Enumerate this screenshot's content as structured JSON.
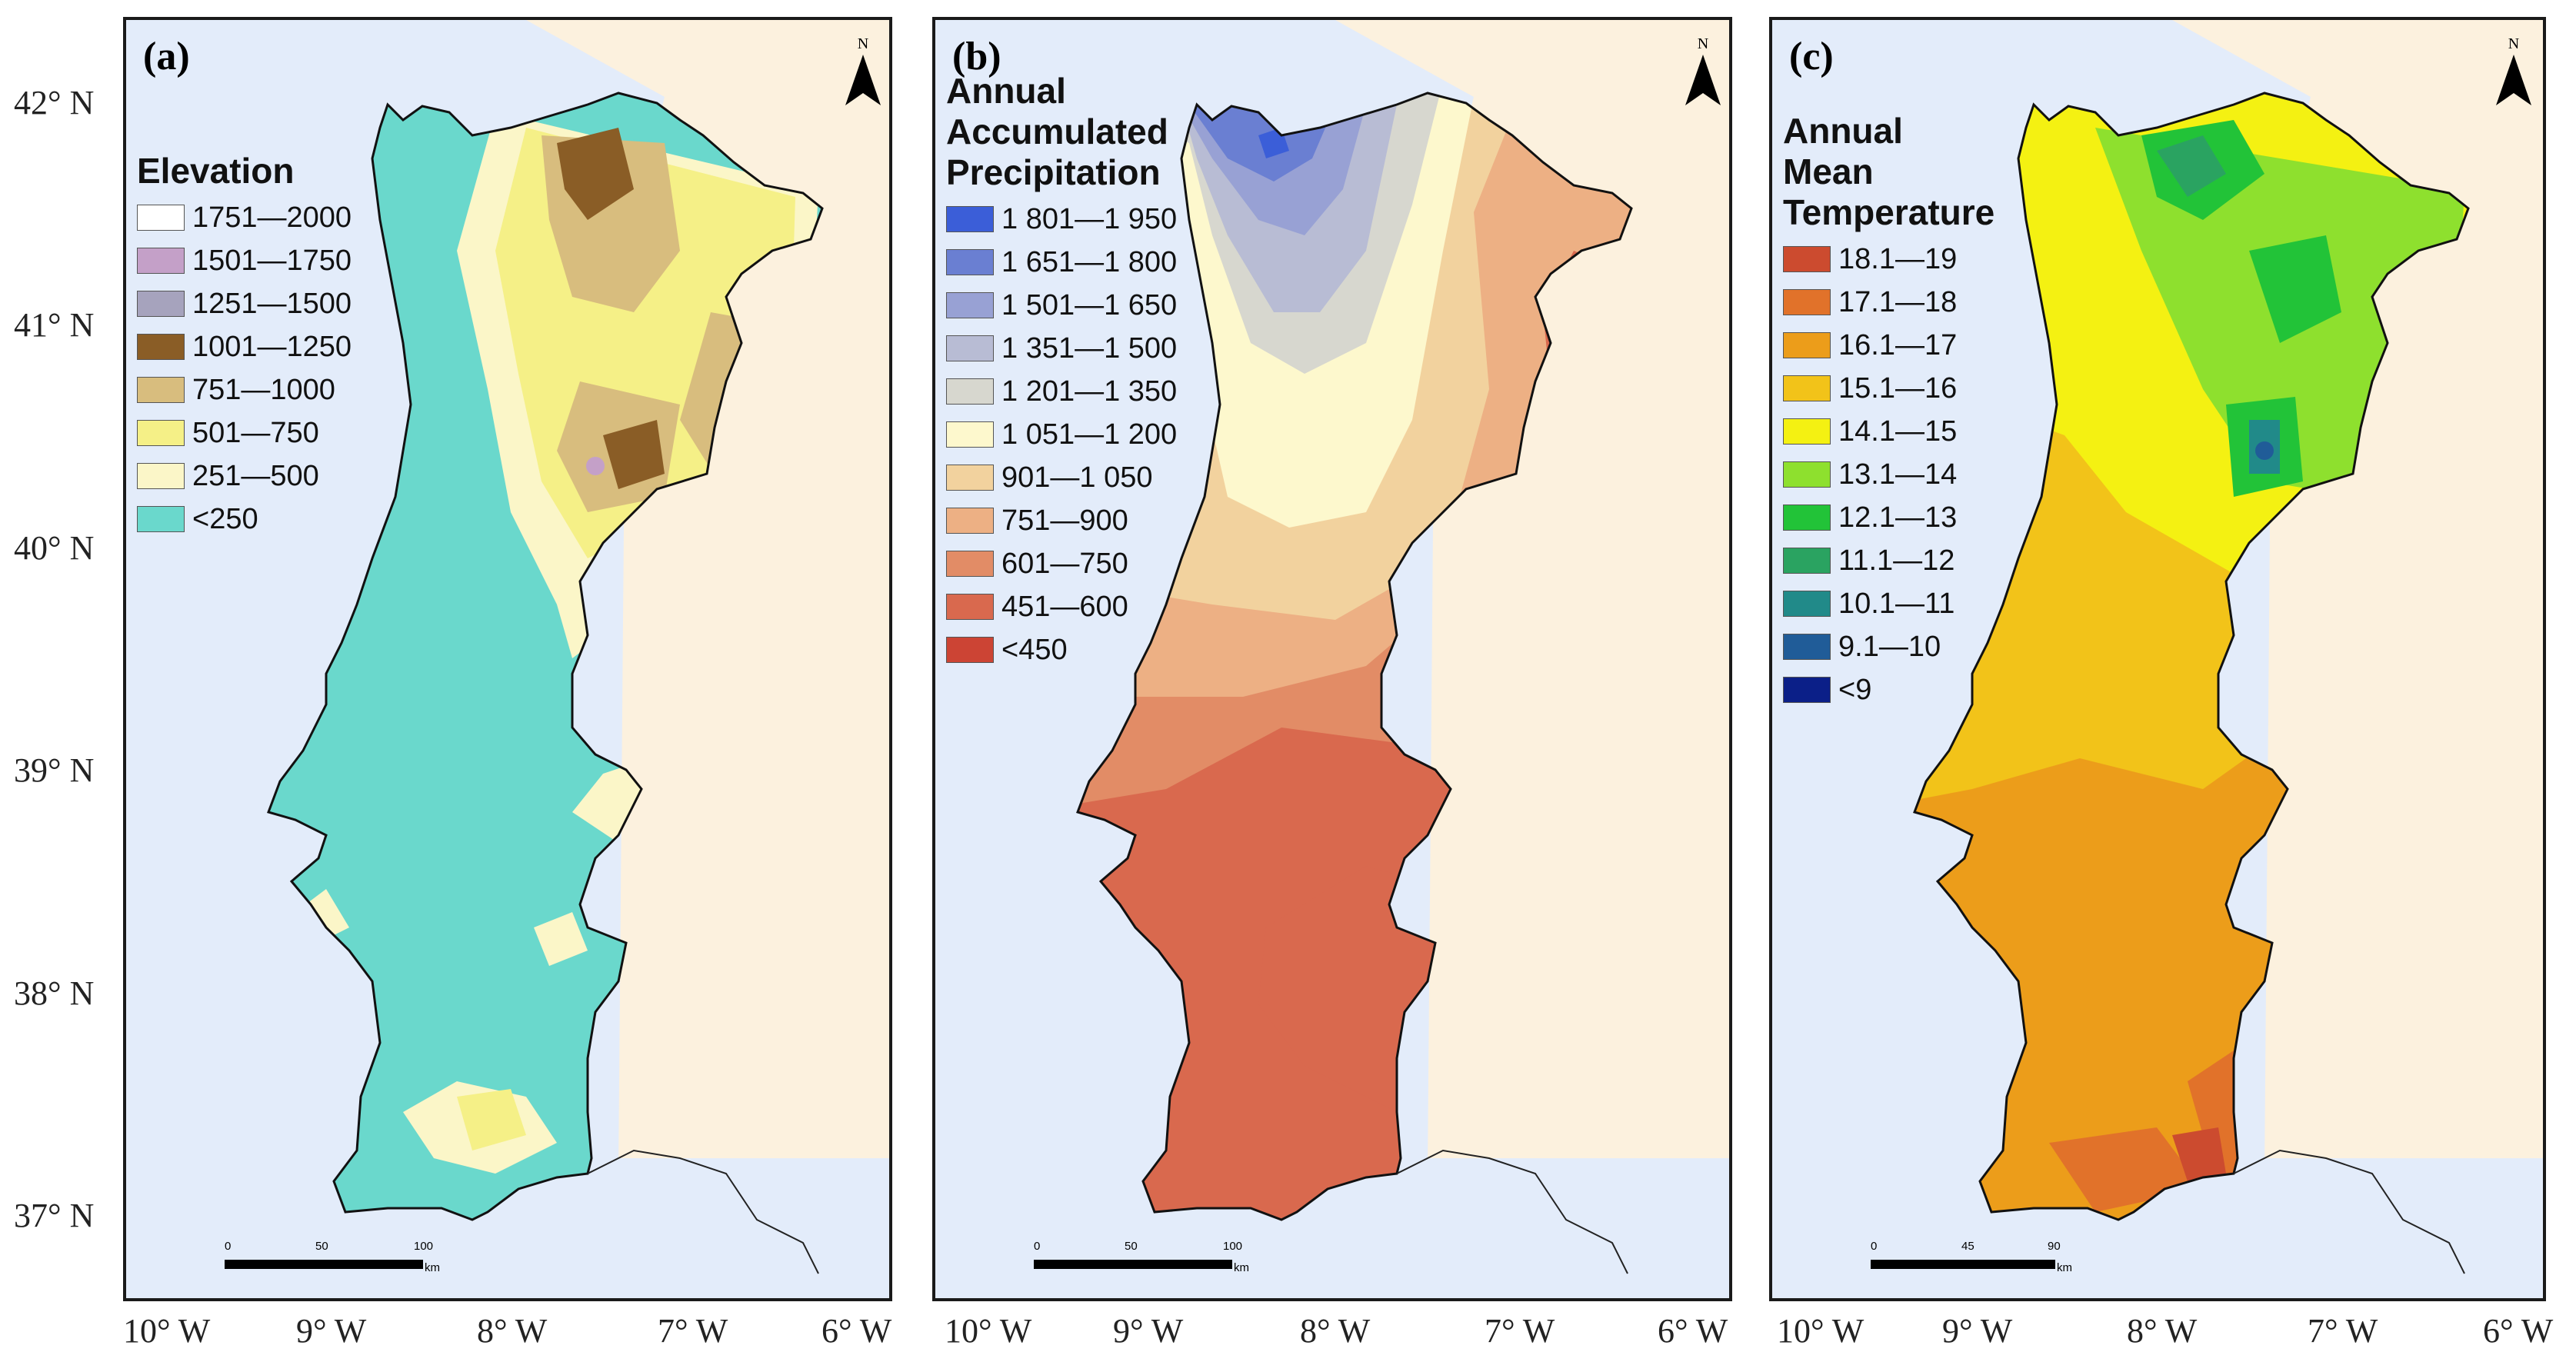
{
  "axes": {
    "latitudes": [
      "42° N",
      "41° N",
      "40° N",
      "39° N",
      "38° N",
      "37° N"
    ],
    "longitudes": [
      "10° W",
      "9° W",
      "8° W",
      "7° W",
      "6° W"
    ]
  },
  "colors": {
    "ocean": "#e3ecfa",
    "spain": "#fcf1de",
    "frame": "#1a1a1a"
  },
  "panels": [
    {
      "label": "(a)",
      "north_letter": "N",
      "legend": {
        "title": "Elevation",
        "items": [
          {
            "label": "1751—2000",
            "color": "#ffffff"
          },
          {
            "label": "1501—1750",
            "color": "#c4a0c8"
          },
          {
            "label": "1251—1500",
            "color": "#a6a3bd"
          },
          {
            "label": "1001—1250",
            "color": "#8a5d26"
          },
          {
            "label": "751—1000",
            "color": "#d8bd7e"
          },
          {
            "label": "501—750",
            "color": "#f5f087"
          },
          {
            "label": "251—500",
            "color": "#fbf6c8"
          },
          {
            "label": "<250",
            "color": "#6ad8cc"
          }
        ]
      },
      "scalebar": {
        "ticks": [
          "0",
          "50",
          "100"
        ],
        "unit": "km"
      }
    },
    {
      "label": "(b)",
      "north_letter": "N",
      "legend": {
        "title": "Annual Accumulated Precipitation",
        "title_lines": [
          "Annual",
          "Accumulated",
          "Precipitation"
        ],
        "items": [
          {
            "label": "1 801—1 950",
            "color": "#3b5ed8"
          },
          {
            "label": "1 651—1 800",
            "color": "#6a7fd2"
          },
          {
            "label": "1 501—1 650",
            "color": "#98a1d4"
          },
          {
            "label": "1 351—1 500",
            "color": "#b8bcd4"
          },
          {
            "label": "1 201—1 350",
            "color": "#d7d7cf"
          },
          {
            "label": "1 051—1 200",
            "color": "#fdf8cd"
          },
          {
            "label": "901—1 050",
            "color": "#f2d29e"
          },
          {
            "label": "751—900",
            "color": "#edb084"
          },
          {
            "label": "601—750",
            "color": "#e28c66"
          },
          {
            "label": "451—600",
            "color": "#d9694e"
          },
          {
            "label": "<450",
            "color": "#cc4434"
          }
        ]
      },
      "scalebar": {
        "ticks": [
          "0",
          "50",
          "100"
        ],
        "unit": "km"
      }
    },
    {
      "label": "(c)",
      "north_letter": "N",
      "legend": {
        "title": "Annual Mean Temperature",
        "title_lines": [
          "Annual",
          "Mean",
          "Temperature"
        ],
        "items": [
          {
            "label": "18.1—19",
            "color": "#cc4b2f"
          },
          {
            "label": "17.1—18",
            "color": "#e1722a"
          },
          {
            "label": "16.1—17",
            "color": "#ec9d1a"
          },
          {
            "label": "15.1—16",
            "color": "#f2c319"
          },
          {
            "label": "14.1—15",
            "color": "#f4f112"
          },
          {
            "label": "13.1—14",
            "color": "#8ee02e"
          },
          {
            "label": "12.1—13",
            "color": "#22c338"
          },
          {
            "label": "11.1—12",
            "color": "#2aa361"
          },
          {
            "label": "10.1—11",
            "color": "#218a89"
          },
          {
            "label": "9.1—10",
            "color": "#205c98"
          },
          {
            "label": "<9",
            "color": "#0b1f88"
          }
        ]
      },
      "scalebar": {
        "ticks": [
          "0",
          "45",
          "90"
        ],
        "unit": "km"
      }
    }
  ]
}
